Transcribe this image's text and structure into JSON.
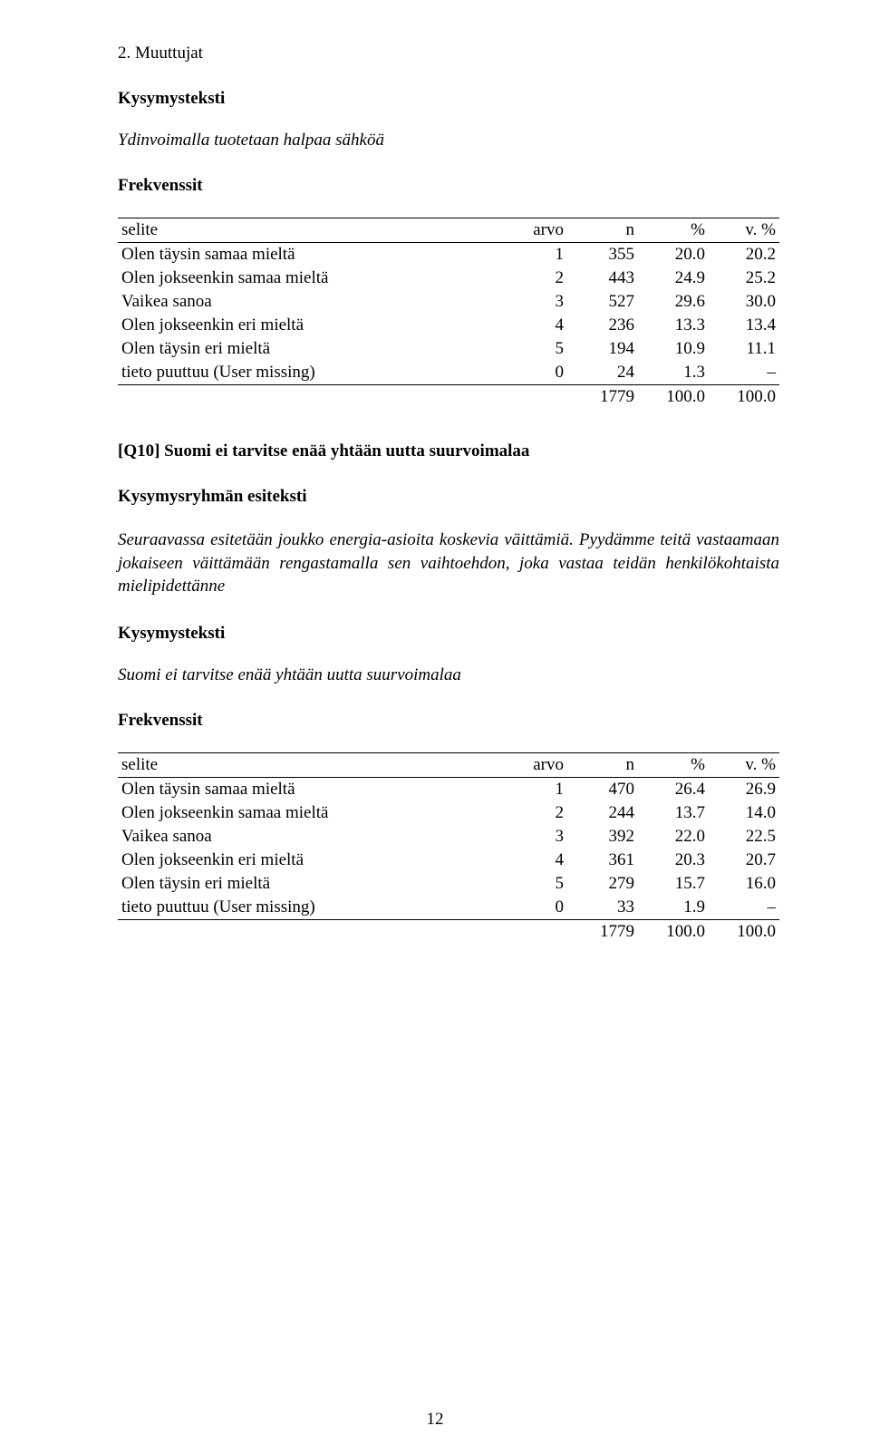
{
  "section_header": "2. Muuttujat",
  "labels": {
    "kysymysteksti": "Kysymysteksti",
    "frekvenssit": "Frekvenssit",
    "kysymysryhman_esiteksti": "Kysymysryhmän esiteksti"
  },
  "q9": {
    "question_text": "Ydinvoimalla tuotetaan halpaa sähköä",
    "table": {
      "columns": [
        "selite",
        "arvo",
        "n",
        "%",
        "v. %"
      ],
      "rows": [
        {
          "selite": "Olen täysin samaa mieltä",
          "arvo": "1",
          "n": "355",
          "pct": "20.0",
          "vpct": "20.2"
        },
        {
          "selite": "Olen jokseenkin samaa mieltä",
          "arvo": "2",
          "n": "443",
          "pct": "24.9",
          "vpct": "25.2"
        },
        {
          "selite": "Vaikea sanoa",
          "arvo": "3",
          "n": "527",
          "pct": "29.6",
          "vpct": "30.0"
        },
        {
          "selite": "Olen jokseenkin eri mieltä",
          "arvo": "4",
          "n": "236",
          "pct": "13.3",
          "vpct": "13.4"
        },
        {
          "selite": "Olen täysin eri mieltä",
          "arvo": "5",
          "n": "194",
          "pct": "10.9",
          "vpct": "11.1"
        },
        {
          "selite": "tieto puuttuu (User missing)",
          "arvo": "0",
          "n": "24",
          "pct": "1.3",
          "vpct": "–"
        }
      ],
      "total": {
        "n": "1779",
        "pct": "100.0",
        "vpct": "100.0"
      }
    }
  },
  "q10": {
    "heading": "[Q10] Suomi ei tarvitse enää yhtään uutta suurvoimalaa",
    "esiteksti": "Seuraavassa esitetään joukko energia-asioita koskevia väittämiä. Pyydämme teitä vastaamaan jokaiseen väittämään rengastamalla sen vaihtoehdon, joka vastaa teidän henkilökohtaista mielipidettänne",
    "question_text": "Suomi ei tarvitse enää yhtään uutta suurvoimalaa",
    "table": {
      "columns": [
        "selite",
        "arvo",
        "n",
        "%",
        "v. %"
      ],
      "rows": [
        {
          "selite": "Olen täysin samaa mieltä",
          "arvo": "1",
          "n": "470",
          "pct": "26.4",
          "vpct": "26.9"
        },
        {
          "selite": "Olen jokseenkin samaa mieltä",
          "arvo": "2",
          "n": "244",
          "pct": "13.7",
          "vpct": "14.0"
        },
        {
          "selite": "Vaikea sanoa",
          "arvo": "3",
          "n": "392",
          "pct": "22.0",
          "vpct": "22.5"
        },
        {
          "selite": "Olen jokseenkin eri mieltä",
          "arvo": "4",
          "n": "361",
          "pct": "20.3",
          "vpct": "20.7"
        },
        {
          "selite": "Olen täysin eri mieltä",
          "arvo": "5",
          "n": "279",
          "pct": "15.7",
          "vpct": "16.0"
        },
        {
          "selite": "tieto puuttuu (User missing)",
          "arvo": "0",
          "n": "33",
          "pct": "1.9",
          "vpct": "–"
        }
      ],
      "total": {
        "n": "1779",
        "pct": "100.0",
        "vpct": "100.0"
      }
    }
  },
  "page_number": "12",
  "style": {
    "background_color": "#ffffff",
    "text_color": "#000000",
    "font_family": "Times New Roman",
    "body_fontsize_pt": 14,
    "border_color": "#000000"
  }
}
